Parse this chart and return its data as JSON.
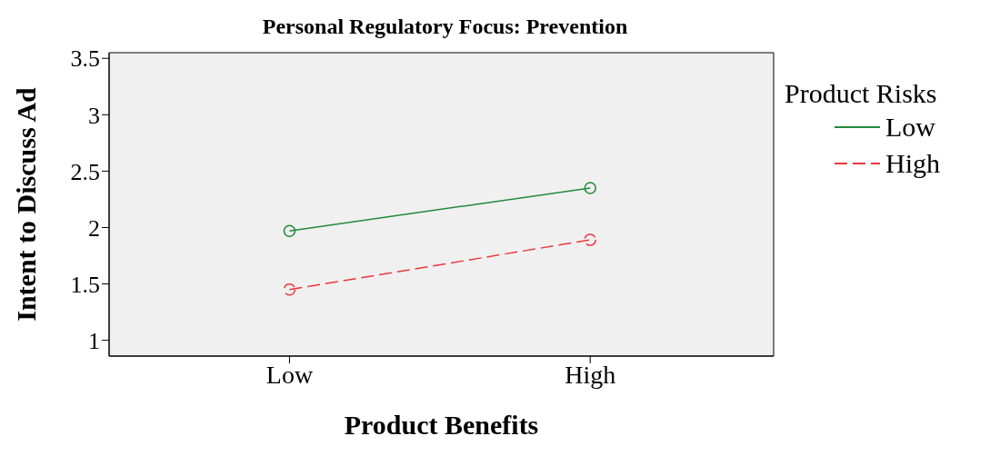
{
  "chart_data": {
    "type": "line",
    "title": "Personal Regulatory Focus: Prevention",
    "xlabel": "Product Benefits",
    "ylabel": "Intent to Discuss Ad",
    "legend_title": "Product Risks",
    "categories": [
      "Low",
      "High"
    ],
    "series": [
      {
        "name": "Low",
        "color": "#1f8a3c",
        "values": [
          1.97,
          2.35
        ],
        "line_style": "solid"
      },
      {
        "name": "High",
        "color": "#e8383d",
        "values": [
          1.45,
          1.89
        ],
        "line_style": "dashed"
      }
    ],
    "ylim": [
      0.86,
      3.55
    ],
    "yticks": [
      1,
      1.5,
      2,
      2.5,
      3,
      3.5
    ],
    "legend": "right",
    "marker": "circle"
  }
}
